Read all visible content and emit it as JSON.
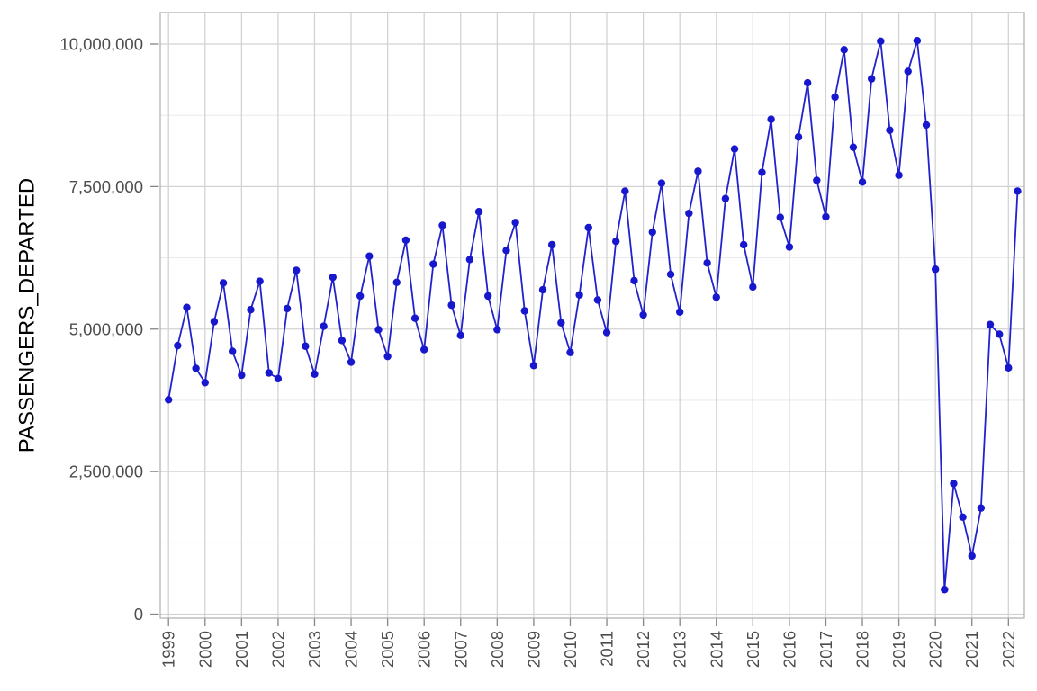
{
  "chart_data": {
    "type": "line",
    "title": "",
    "xlabel": "",
    "ylabel": "PASSENGERS_DEPARTED",
    "legend_position": "none",
    "grid": true,
    "ylim": [
      0,
      10550000
    ],
    "y_major_ticks": [
      0,
      2500000,
      5000000,
      7500000,
      10000000
    ],
    "y_tick_labels": [
      "0",
      "2,500,000",
      "5,000,000",
      "7,500,000",
      "10,000,000"
    ],
    "y_minor_ticks": [
      1250000,
      3750000,
      6250000,
      8750000
    ],
    "x_tick_labels": [
      "1999",
      "2000",
      "2001",
      "2002",
      "2003",
      "2004",
      "2005",
      "2006",
      "2007",
      "2008",
      "2009",
      "2010",
      "2011",
      "2012",
      "2013",
      "2014",
      "2015",
      "2016",
      "2017",
      "2018",
      "2019",
      "2020",
      "2021",
      "2022"
    ],
    "x": [
      "1999 Q1",
      "1999 Q2",
      "1999 Q3",
      "1999 Q4",
      "2000 Q1",
      "2000 Q2",
      "2000 Q3",
      "2000 Q4",
      "2001 Q1",
      "2001 Q2",
      "2001 Q3",
      "2001 Q4",
      "2002 Q1",
      "2002 Q2",
      "2002 Q3",
      "2002 Q4",
      "2003 Q1",
      "2003 Q2",
      "2003 Q3",
      "2003 Q4",
      "2004 Q1",
      "2004 Q2",
      "2004 Q3",
      "2004 Q4",
      "2005 Q1",
      "2005 Q2",
      "2005 Q3",
      "2005 Q4",
      "2006 Q1",
      "2006 Q2",
      "2006 Q3",
      "2006 Q4",
      "2007 Q1",
      "2007 Q2",
      "2007 Q3",
      "2007 Q4",
      "2008 Q1",
      "2008 Q2",
      "2008 Q3",
      "2008 Q4",
      "2009 Q1",
      "2009 Q2",
      "2009 Q3",
      "2009 Q4",
      "2010 Q1",
      "2010 Q2",
      "2010 Q3",
      "2010 Q4",
      "2011 Q1",
      "2011 Q2",
      "2011 Q3",
      "2011 Q4",
      "2012 Q1",
      "2012 Q2",
      "2012 Q3",
      "2012 Q4",
      "2013 Q1",
      "2013 Q2",
      "2013 Q3",
      "2013 Q4",
      "2014 Q1",
      "2014 Q2",
      "2014 Q3",
      "2014 Q4",
      "2015 Q1",
      "2015 Q2",
      "2015 Q3",
      "2015 Q4",
      "2016 Q1",
      "2016 Q2",
      "2016 Q3",
      "2016 Q4",
      "2017 Q1",
      "2017 Q2",
      "2017 Q3",
      "2017 Q4",
      "2018 Q1",
      "2018 Q2",
      "2018 Q3",
      "2018 Q4",
      "2019 Q1",
      "2019 Q2",
      "2019 Q3",
      "2019 Q4",
      "2020 Q1",
      "2020 Q2",
      "2020 Q3",
      "2020 Q4",
      "2021 Q1",
      "2021 Q2",
      "2021 Q3",
      "2021 Q4",
      "2022 Q1",
      "2022 Q2"
    ],
    "values": [
      3760000,
      4710000,
      5380000,
      4310000,
      4060000,
      5130000,
      5810000,
      4610000,
      4190000,
      5340000,
      5840000,
      4230000,
      4130000,
      5360000,
      6030000,
      4700000,
      4210000,
      5050000,
      5910000,
      4800000,
      4420000,
      5580000,
      6280000,
      4990000,
      4520000,
      5820000,
      6560000,
      5190000,
      4640000,
      6140000,
      6820000,
      5420000,
      4890000,
      6220000,
      7060000,
      5580000,
      4990000,
      6380000,
      6870000,
      5320000,
      4360000,
      5690000,
      6480000,
      5110000,
      4590000,
      5600000,
      6780000,
      5510000,
      4940000,
      6540000,
      7420000,
      5850000,
      5250000,
      6700000,
      7560000,
      5960000,
      5300000,
      7030000,
      7770000,
      6160000,
      5560000,
      7290000,
      8160000,
      6480000,
      5740000,
      7750000,
      8680000,
      6960000,
      6440000,
      8370000,
      9320000,
      7610000,
      6970000,
      9070000,
      9900000,
      8190000,
      7580000,
      9390000,
      10050000,
      8490000,
      7700000,
      9520000,
      10060000,
      8580000,
      6050000,
      430000,
      2290000,
      1700000,
      1020000,
      1860000,
      5080000,
      4910000,
      4320000,
      7420000
    ],
    "colors": {
      "line": "#2222cd",
      "point": "#1717cd",
      "grid_major": "#d2d2d2",
      "grid_minor": "#e6e6e6",
      "panel_border": "#b4b4b4",
      "tick_mark": "#858585",
      "axis_text": "#4d4d4d",
      "axis_title": "#000000",
      "background": "#ffffff"
    }
  }
}
